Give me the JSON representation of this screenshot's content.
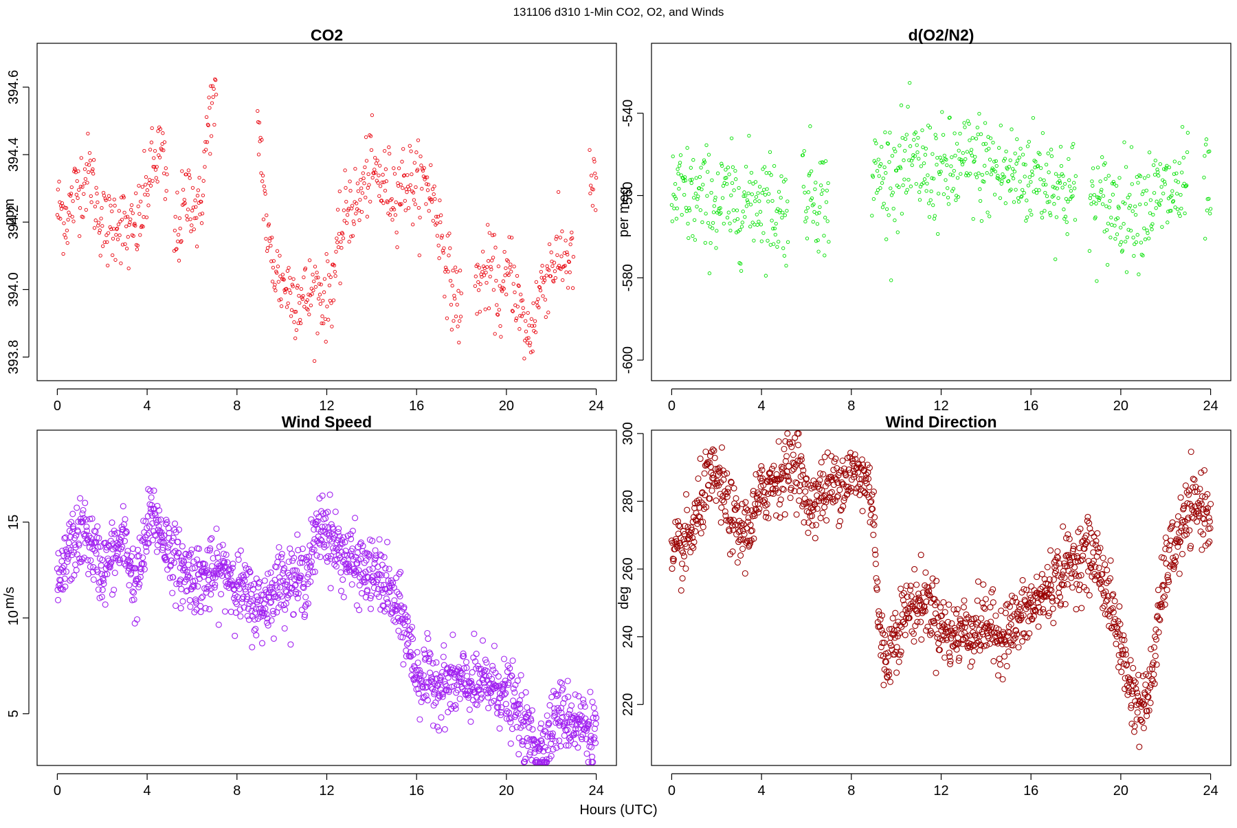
{
  "figure": {
    "suptitle": "131106   d310   1-Min CO2, O2, and Winds",
    "xlabel": "Hours (UTC)"
  },
  "chart_data": [
    {
      "id": "co2",
      "type": "scatter",
      "title": "CO2",
      "xlabel": "",
      "ylabel": "ppm",
      "xlim": [
        -0.9,
        24.9
      ],
      "ylim": [
        393.73,
        394.73
      ],
      "xticks": [
        0,
        4,
        8,
        12,
        16,
        20,
        24
      ],
      "yticks": [
        393.8,
        394.0,
        394.2,
        394.4,
        394.6
      ],
      "ytick_labels": [
        "393.8",
        "394.0",
        "394.2",
        "394.4",
        "394.6"
      ],
      "color": "#e8000b",
      "marker_size": "small",
      "gaps": [
        [
          4.9,
          5.2
        ],
        [
          7.1,
          8.9
        ],
        [
          18.0,
          18.6
        ],
        [
          23.0,
          23.7
        ]
      ],
      "trend": [
        [
          0,
          394.24
        ],
        [
          0.5,
          394.22
        ],
        [
          0.9,
          394.31
        ],
        [
          1.5,
          394.35
        ],
        [
          1.7,
          394.26
        ],
        [
          2.2,
          394.17
        ],
        [
          2.7,
          394.22
        ],
        [
          3.2,
          394.15
        ],
        [
          3.7,
          394.21
        ],
        [
          4.1,
          394.33
        ],
        [
          4.6,
          394.42
        ],
        [
          5.2,
          394.14
        ],
        [
          5.9,
          394.3
        ],
        [
          6.3,
          394.2
        ],
        [
          6.8,
          394.54
        ],
        [
          9.0,
          394.47
        ],
        [
          9.4,
          394.12
        ],
        [
          9.9,
          394.03
        ],
        [
          10.5,
          393.99
        ],
        [
          11.0,
          393.97
        ],
        [
          11.5,
          394.0
        ],
        [
          12.0,
          393.97
        ],
        [
          12.5,
          394.1
        ],
        [
          12.9,
          394.25
        ],
        [
          13.4,
          394.25
        ],
        [
          13.9,
          394.36
        ],
        [
          14.5,
          394.31
        ],
        [
          15.0,
          394.29
        ],
        [
          15.6,
          394.33
        ],
        [
          16.0,
          394.3
        ],
        [
          16.5,
          394.32
        ],
        [
          17.0,
          394.2
        ],
        [
          17.5,
          394.02
        ],
        [
          18.0,
          393.93
        ],
        [
          18.8,
          394.03
        ],
        [
          19.3,
          394.06
        ],
        [
          19.8,
          393.96
        ],
        [
          20.2,
          394.08
        ],
        [
          20.6,
          393.93
        ],
        [
          21.0,
          393.85
        ],
        [
          21.5,
          394.0
        ],
        [
          22.0,
          394.08
        ],
        [
          22.5,
          394.1
        ],
        [
          22.9,
          394.09
        ],
        [
          23.8,
          394.31
        ],
        [
          24.0,
          394.27
        ]
      ],
      "noise": 0.06,
      "n_points": 900
    },
    {
      "id": "o2",
      "type": "scatter",
      "title": "d(O2/N2)",
      "xlabel": "",
      "ylabel": "per meg",
      "xlim": [
        -0.9,
        24.9
      ],
      "ylim": [
        -605,
        -523
      ],
      "xticks": [
        0,
        4,
        8,
        12,
        16,
        20,
        24
      ],
      "yticks": [
        -600,
        -580,
        -560,
        -540
      ],
      "ytick_labels": [
        "-600",
        "-580",
        "-560",
        "-540"
      ],
      "color": "#00e000",
      "marker_size": "small",
      "gaps": [
        [
          5.2,
          5.8
        ],
        [
          7.0,
          8.9
        ],
        [
          18.0,
          18.6
        ],
        [
          23.0,
          23.7
        ]
      ],
      "trend": [
        [
          0,
          -560
        ],
        [
          1.0,
          -561
        ],
        [
          2.0,
          -562
        ],
        [
          3.0,
          -562
        ],
        [
          4.0,
          -560
        ],
        [
          4.8,
          -564
        ],
        [
          6.0,
          -558
        ],
        [
          7.0,
          -562
        ],
        [
          9.0,
          -556
        ],
        [
          10.5,
          -553
        ],
        [
          12.0,
          -555
        ],
        [
          13.5,
          -552
        ],
        [
          15.0,
          -555
        ],
        [
          16.5,
          -555
        ],
        [
          18.0,
          -560
        ],
        [
          19.5,
          -563
        ],
        [
          21.0,
          -562
        ],
        [
          23.0,
          -558
        ],
        [
          24.0,
          -558
        ]
      ],
      "noise": 6.5,
      "n_points": 900
    },
    {
      "id": "wind_speed",
      "type": "scatter",
      "title": "Wind Speed",
      "xlabel": "",
      "ylabel": "m/s",
      "xlim": [
        -0.9,
        24.9
      ],
      "ylim": [
        2.3,
        19.8
      ],
      "xticks": [
        0,
        4,
        8,
        12,
        16,
        20,
        24
      ],
      "yticks": [
        5,
        10,
        15
      ],
      "ytick_labels": [
        "5",
        "10",
        "15"
      ],
      "color": "#a020f0",
      "marker_size": "large",
      "gaps": [],
      "trend": [
        [
          0,
          11.0
        ],
        [
          0.5,
          13.5
        ],
        [
          1.2,
          14.5
        ],
        [
          2.0,
          12.5
        ],
        [
          3.0,
          14.0
        ],
        [
          3.5,
          11.5
        ],
        [
          4.2,
          15.5
        ],
        [
          4.8,
          14.0
        ],
        [
          5.5,
          12.5
        ],
        [
          6.5,
          12.0
        ],
        [
          7.5,
          12.5
        ],
        [
          8.5,
          11.0
        ],
        [
          9.0,
          10.5
        ],
        [
          10.0,
          12.0
        ],
        [
          11.0,
          12.0
        ],
        [
          11.8,
          15.0
        ],
        [
          12.5,
          13.5
        ],
        [
          13.5,
          12.5
        ],
        [
          14.5,
          12.0
        ],
        [
          15.5,
          9.5
        ],
        [
          16.0,
          7.0
        ],
        [
          17.0,
          6.5
        ],
        [
          18.0,
          6.5
        ],
        [
          19.5,
          6.5
        ],
        [
          20.3,
          5.5
        ],
        [
          21.0,
          3.8
        ],
        [
          21.6,
          3.2
        ],
        [
          22.3,
          5.0
        ],
        [
          23.0,
          4.7
        ],
        [
          24.0,
          4.0
        ]
      ],
      "noise": 0.9,
      "n_points": 1440
    },
    {
      "id": "wind_direction",
      "type": "scatter",
      "title": "Wind Direction",
      "xlabel": "",
      "ylabel": "deg",
      "xlim": [
        -0.9,
        24.9
      ],
      "ylim": [
        202,
        301
      ],
      "xticks": [
        0,
        4,
        8,
        12,
        16,
        20,
        24
      ],
      "yticks": [
        220,
        240,
        260,
        280,
        300
      ],
      "ytick_labels": [
        "220",
        "240",
        "260",
        "280",
        "300"
      ],
      "color": "#990000",
      "marker_size": "large",
      "gaps": [],
      "trend": [
        [
          0,
          262
        ],
        [
          0.5,
          266
        ],
        [
          1.0,
          272
        ],
        [
          1.5,
          284
        ],
        [
          2.0,
          287
        ],
        [
          2.5,
          278
        ],
        [
          3.0,
          270
        ],
        [
          3.5,
          273
        ],
        [
          4.0,
          282
        ],
        [
          4.5,
          286
        ],
        [
          5.0,
          288
        ],
        [
          5.6,
          293
        ],
        [
          6.0,
          278
        ],
        [
          6.5,
          282
        ],
        [
          7.0,
          284
        ],
        [
          8.0,
          288
        ],
        [
          8.7,
          286
        ],
        [
          9.0,
          278
        ],
        [
          9.2,
          245
        ],
        [
          9.5,
          232
        ],
        [
          10.0,
          242
        ],
        [
          10.5,
          248
        ],
        [
          11.0,
          250
        ],
        [
          11.5,
          250
        ],
        [
          12.0,
          243
        ],
        [
          12.5,
          240
        ],
        [
          13.0,
          242
        ],
        [
          13.5,
          242
        ],
        [
          14.0,
          244
        ],
        [
          14.5,
          240
        ],
        [
          15.0,
          242
        ],
        [
          15.5,
          245
        ],
        [
          16.0,
          248
        ],
        [
          16.5,
          252
        ],
        [
          17.0,
          256
        ],
        [
          17.5,
          260
        ],
        [
          18.0,
          262
        ],
        [
          18.5,
          265
        ],
        [
          19.0,
          262
        ],
        [
          19.5,
          250
        ],
        [
          20.0,
          238
        ],
        [
          20.3,
          228
        ],
        [
          20.6,
          222
        ],
        [
          21.0,
          218
        ],
        [
          21.3,
          225
        ],
        [
          21.6,
          240
        ],
        [
          22.0,
          260
        ],
        [
          22.5,
          268
        ],
        [
          23.0,
          276
        ],
        [
          23.5,
          279
        ],
        [
          24.0,
          276
        ]
      ],
      "noise": 5.0,
      "n_points": 1300
    }
  ]
}
